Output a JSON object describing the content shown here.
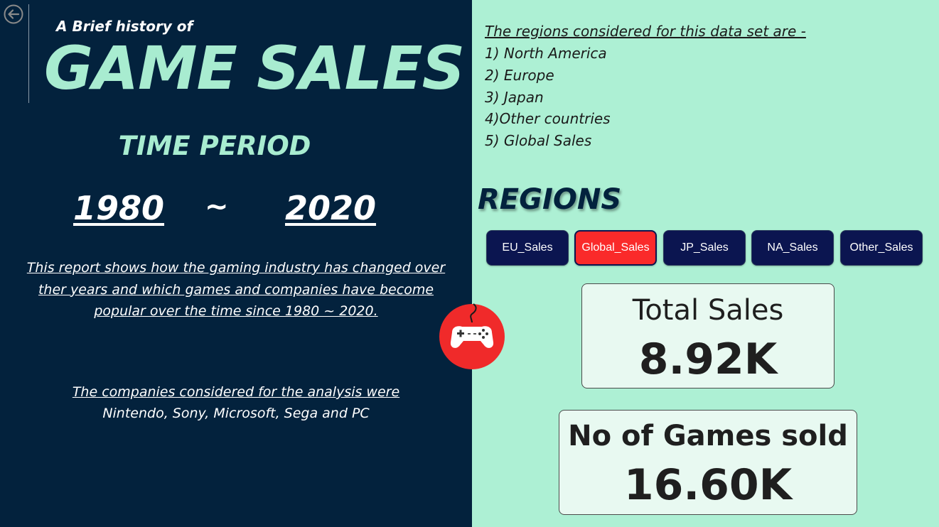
{
  "header": {
    "subtitle": "A Brief history of",
    "title": "GAME SALES"
  },
  "time_period": {
    "heading": "TIME PERIOD",
    "start_year": "1980",
    "separator": "~",
    "end_year": "2020"
  },
  "report": {
    "description_lines": [
      "This report shows how the gaming industry has changed over",
      "ther years and which games and companies have become",
      "popular over the time since 1980 ~ 2020."
    ],
    "companies_heading": "The companies considered for the analysis were",
    "companies_list": "Nintendo, Sony, Microsoft, Sega and PC"
  },
  "regions": {
    "intro": "The regions considered for this data set are -",
    "list": [
      "1) North America",
      "2) Europe",
      "3) Japan",
      "4)Other countries",
      "5) Global Sales"
    ],
    "heading": "REGIONS"
  },
  "slicer": {
    "buttons": [
      "EU_Sales",
      "Global_Sales",
      "JP_Sales",
      "NA_Sales",
      "Other_Sales"
    ],
    "selected": "Global_Sales"
  },
  "kpis": {
    "total_sales": {
      "label": "Total Sales",
      "value": "8.92K"
    },
    "games_sold": {
      "label": "No of Games sold",
      "value": "16.60K"
    }
  },
  "icons": {
    "back": "back-arrow-icon",
    "gamepad": "gamepad-icon"
  },
  "colors": {
    "left_panel_bg": "#03223d",
    "right_panel_bg": "#adf0d4",
    "title_accent": "#a8ecd0",
    "slicer_bg": "#0b1550",
    "slicer_selected": "#fa2a2a",
    "gamepad_circle": "#f02a2a"
  }
}
